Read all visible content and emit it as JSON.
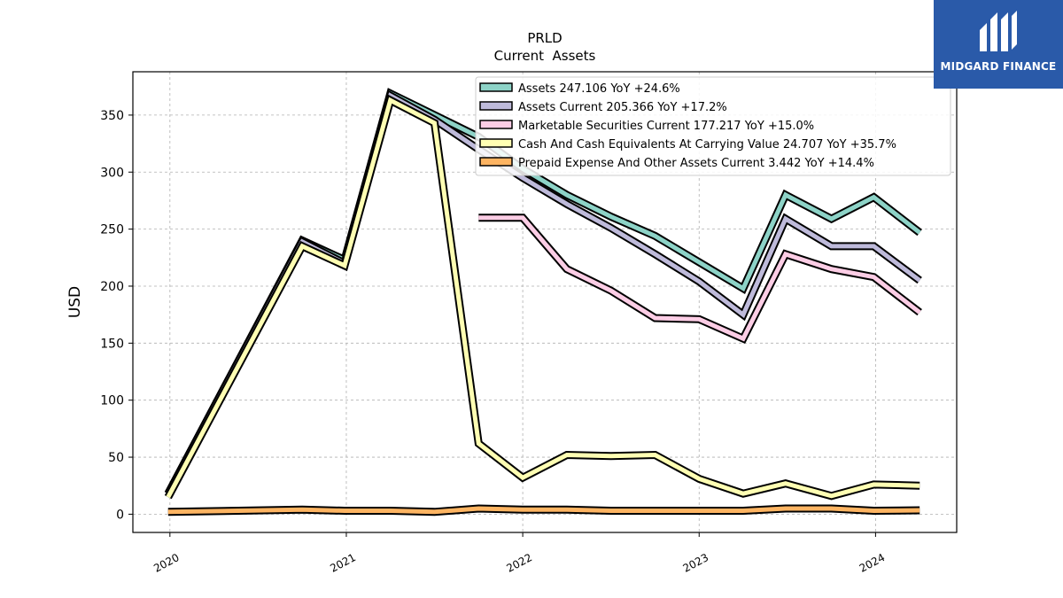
{
  "brand": {
    "name": "MIDGARD FINANCE",
    "bg_color": "#2a5aa9"
  },
  "chart_data": {
    "type": "line",
    "title": "PRLD",
    "subtitle": "Current  Assets",
    "xlabel": "",
    "ylabel": "USD",
    "ylim": [
      -16,
      388
    ],
    "yticks": [
      0,
      50,
      100,
      150,
      200,
      250,
      300,
      350
    ],
    "xlim": [
      2019.79,
      2024.46
    ],
    "xticks": [
      {
        "value": 2020,
        "label": "2020"
      },
      {
        "value": 2021,
        "label": "2021"
      },
      {
        "value": 2022,
        "label": "2022"
      },
      {
        "value": 2023,
        "label": "2023"
      },
      {
        "value": 2024,
        "label": "2024"
      }
    ],
    "grid": true,
    "legend_position": "top-right",
    "series": [
      {
        "name": "Assets",
        "legend": "Assets  247.106 YoY +24.6%",
        "color": "#8dd3c7",
        "points": [
          [
            2019.99,
            18
          ],
          [
            2020.75,
            240
          ],
          [
            2020.99,
            223
          ],
          [
            2021.25,
            369
          ],
          [
            2021.5,
            350
          ],
          [
            2021.75,
            331
          ],
          [
            2022.0,
            303
          ],
          [
            2022.25,
            280
          ],
          [
            2022.5,
            261
          ],
          [
            2022.75,
            244
          ],
          [
            2023.0,
            221
          ],
          [
            2023.25,
            198
          ],
          [
            2023.49,
            280
          ],
          [
            2023.75,
            259
          ],
          [
            2023.99,
            278
          ],
          [
            2024.25,
            247
          ]
        ]
      },
      {
        "name": "Assets Current",
        "legend": "Assets Current  205.366 YoY +17.2%",
        "color": "#bebada",
        "points": [
          [
            2019.99,
            18
          ],
          [
            2020.75,
            239
          ],
          [
            2020.99,
            220
          ],
          [
            2021.25,
            367
          ],
          [
            2021.5,
            346
          ],
          [
            2021.75,
            320
          ],
          [
            2022.0,
            295
          ],
          [
            2022.25,
            272
          ],
          [
            2022.5,
            251
          ],
          [
            2022.75,
            228
          ],
          [
            2023.0,
            204
          ],
          [
            2023.25,
            175
          ],
          [
            2023.49,
            259
          ],
          [
            2023.75,
            235
          ],
          [
            2023.99,
            235
          ],
          [
            2024.25,
            205
          ]
        ]
      },
      {
        "name": "Marketable Securities Current",
        "legend": "Marketable Securities Current  177.217 YoY +15.0%",
        "color": "#fccde5",
        "points": [
          [
            2021.75,
            260
          ],
          [
            2022.0,
            260
          ],
          [
            2022.25,
            215
          ],
          [
            2022.5,
            196
          ],
          [
            2022.75,
            172
          ],
          [
            2023.0,
            171
          ],
          [
            2023.25,
            154
          ],
          [
            2023.49,
            228
          ],
          [
            2023.75,
            215
          ],
          [
            2023.99,
            208
          ],
          [
            2024.25,
            177
          ]
        ]
      },
      {
        "name": "Cash And Cash Equivalents At Carrying Value",
        "legend": "Cash And Cash Equivalents At Carrying Value  24.707 YoY +35.7%",
        "color": "#ffffb3",
        "points": [
          [
            2019.99,
            15
          ],
          [
            2020.75,
            235
          ],
          [
            2020.99,
            218
          ],
          [
            2021.25,
            363
          ],
          [
            2021.5,
            343
          ],
          [
            2021.75,
            62
          ],
          [
            2022.0,
            32
          ],
          [
            2022.25,
            52
          ],
          [
            2022.5,
            51
          ],
          [
            2022.75,
            52
          ],
          [
            2023.0,
            31
          ],
          [
            2023.25,
            18
          ],
          [
            2023.49,
            27
          ],
          [
            2023.75,
            16
          ],
          [
            2023.99,
            26
          ],
          [
            2024.25,
            25
          ]
        ]
      },
      {
        "name": "Prepaid Expense And Other Assets Current",
        "legend": "Prepaid Expense And Other Assets Current  3.442 YoY +14.4%",
        "color": "#fdb462",
        "points": [
          [
            2019.99,
            2
          ],
          [
            2020.75,
            4
          ],
          [
            2020.99,
            3
          ],
          [
            2021.25,
            3
          ],
          [
            2021.5,
            2
          ],
          [
            2021.75,
            5
          ],
          [
            2022.0,
            4
          ],
          [
            2022.25,
            4
          ],
          [
            2022.5,
            3
          ],
          [
            2022.75,
            3
          ],
          [
            2023.0,
            3
          ],
          [
            2023.25,
            3
          ],
          [
            2023.49,
            5
          ],
          [
            2023.75,
            5
          ],
          [
            2023.99,
            3
          ],
          [
            2024.25,
            3.4
          ]
        ]
      }
    ]
  }
}
